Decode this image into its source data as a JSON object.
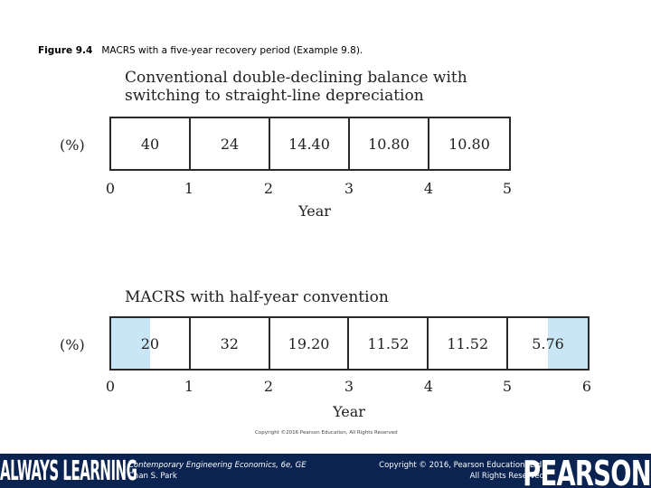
{
  "caption": {
    "label": "Figure 9.4",
    "text": "MACRS with a five-year recovery period (Example 9.8)."
  },
  "top": {
    "title_line1": "Conventional double-declining balance with",
    "title_line2": "switching to straight-line depreciation",
    "unit": "(%)",
    "values": [
      "40",
      "24",
      "14.40",
      "10.80",
      "10.80"
    ],
    "ticks": [
      "0",
      "1",
      "2",
      "3",
      "4",
      "5"
    ],
    "axis_label": "Year"
  },
  "bottom": {
    "title": "MACRS with half-year convention",
    "unit": "(%)",
    "values": [
      "20",
      "32",
      "19.20",
      "11.52",
      "11.52",
      "5.76"
    ],
    "ticks": [
      "0",
      "1",
      "2",
      "3",
      "4",
      "5",
      "6"
    ],
    "axis_label": "Year",
    "highlight_color": "#c9e6f6"
  },
  "figure_copyright": "Copyright ©2016 Pearson Education, All Rights Reserved",
  "footer": {
    "left_brand": "ALWAYS LEARNING",
    "book_title": "Contemporary Engineering Economics, 6e, GE",
    "author": "Chan S. Park",
    "copyright_line1": "Copyright © 2016, Pearson Education, Ltd.",
    "copyright_line2": "All Rights Reserved",
    "right_brand": "PEARSON",
    "background": "#0a2350"
  }
}
